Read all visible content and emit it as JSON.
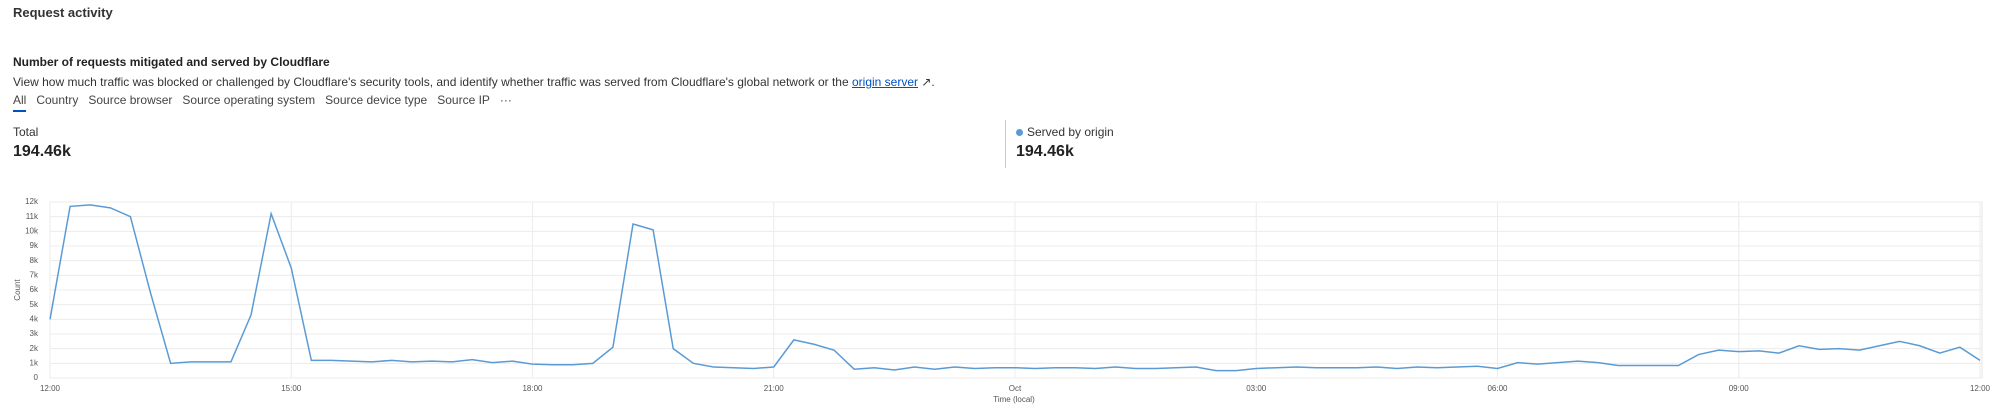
{
  "header": {
    "title": "Request activity"
  },
  "section": {
    "title": "Number of requests mitigated and served by Cloudflare",
    "description": {
      "text": "View how much traffic was blocked or challenged by Cloudflare's security tools, and identify whether traffic was served from Cloudflare's global network or the ",
      "link": "origin server",
      "end": "."
    }
  },
  "tabs": [
    "All",
    "Country",
    "Source browser",
    "Source operating system",
    "Source device type",
    "Source IP",
    "···"
  ],
  "stats": {
    "total_label": "Total",
    "total_value": "194.46k",
    "origin_value": "194.46k"
  },
  "chart_data": {
    "type": "line",
    "xlabel": "Time (local)",
    "ylabel": "Count",
    "categories": [
      "12:00",
      null,
      null,
      null,
      null,
      null,
      null,
      null,
      null,
      null,
      null,
      null,
      "15:00",
      null,
      null,
      null,
      null,
      null,
      null,
      null,
      null,
      null,
      null,
      null,
      "18:00",
      null,
      null,
      null,
      null,
      null,
      null,
      null,
      null,
      null,
      null,
      null,
      "21:00",
      null,
      null,
      null,
      null,
      null,
      null,
      null,
      null,
      null,
      null,
      null,
      "Oct",
      null,
      null,
      null,
      null,
      null,
      null,
      null,
      null,
      null,
      null,
      null,
      "03:00",
      null,
      null,
      null,
      null,
      null,
      null,
      null,
      null,
      null,
      null,
      null,
      "06:00",
      null,
      null,
      null,
      null,
      null,
      null,
      null,
      null,
      null,
      null,
      null,
      "09:00",
      null,
      null,
      null,
      null,
      null,
      null,
      null,
      null,
      null,
      null,
      null,
      "12:00"
    ],
    "series": [
      {
        "name": "Served by origin",
        "color": "#5b9bd5",
        "values": [
          4000,
          11700,
          11800,
          11600,
          11000,
          5800,
          1000,
          1100,
          1100,
          1100,
          4300,
          11200,
          7500,
          1200,
          1200,
          1150,
          1100,
          1200,
          1100,
          1150,
          1100,
          1250,
          1050,
          1150,
          950,
          900,
          900,
          1000,
          2100,
          10500,
          10100,
          2000,
          1000,
          750,
          700,
          650,
          750,
          2600,
          2300,
          1900,
          600,
          700,
          550,
          750,
          600,
          750,
          650,
          700,
          700,
          650,
          700,
          700,
          650,
          750,
          650,
          650,
          700,
          750,
          500,
          500,
          650,
          700,
          750,
          700,
          700,
          700,
          750,
          650,
          750,
          700,
          750,
          800,
          650,
          1050,
          950,
          1050,
          1150,
          1050,
          850,
          850,
          850,
          850,
          1600,
          1900,
          1800,
          1850,
          1700,
          2200,
          1950,
          2000,
          1900,
          2200,
          2500,
          2200,
          1700,
          2100,
          1200
        ]
      }
    ],
    "ylim": [
      0,
      12000
    ],
    "yticks": [
      0,
      {
        "value": 1000,
        "label": "1k"
      },
      {
        "value": 2000,
        "label": "2k"
      },
      {
        "value": 3000,
        "label": "3k"
      },
      {
        "value": 4000,
        "label": "4k"
      },
      {
        "value": 5000,
        "label": "5k"
      },
      {
        "value": 6000,
        "label": "6k"
      },
      {
        "value": 7000,
        "label": "7k"
      },
      {
        "value": 8000,
        "label": "8k"
      },
      {
        "value": 9000,
        "label": "9k"
      },
      {
        "value": 10000,
        "label": "10k"
      },
      {
        "value": 11000,
        "label": "11k"
      },
      {
        "value": 12000,
        "label": "12k"
      }
    ],
    "grid": true
  }
}
